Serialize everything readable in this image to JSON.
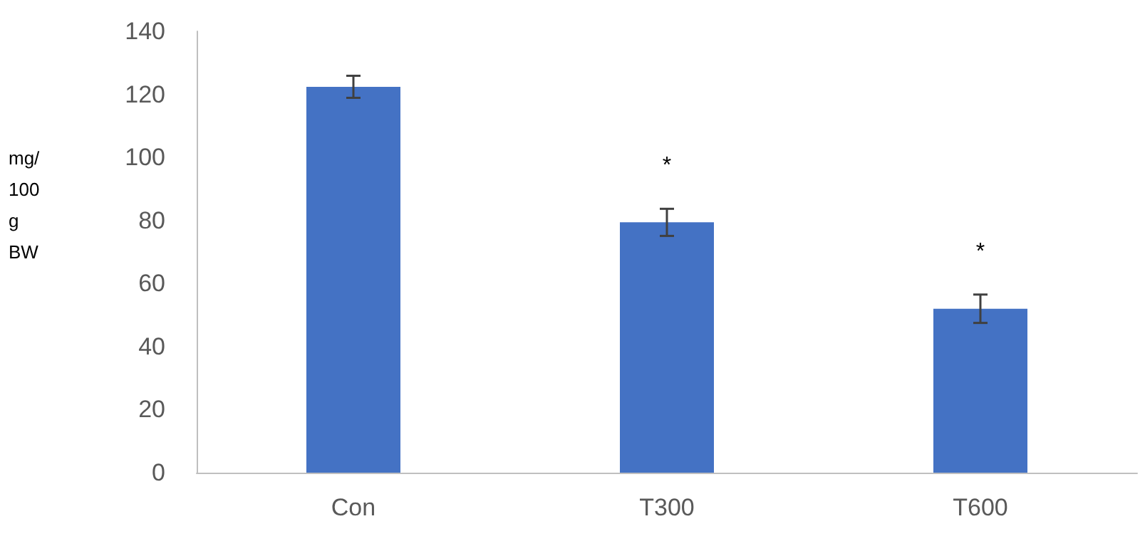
{
  "chart_data": {
    "type": "bar",
    "ylabel": "mg/ 100 g BW",
    "categories": [
      "Con",
      "T300",
      "T600"
    ],
    "values": [
      122.4,
      79.4,
      52
    ],
    "errors": [
      3.5,
      4.3,
      4.5
    ],
    "color": "#4472c4",
    "ylim": [
      0,
      140
    ],
    "yticks": [
      0,
      20,
      40,
      60,
      80,
      100,
      120,
      140
    ],
    "grid": false,
    "annotations": [
      "*",
      "*"
    ]
  }
}
